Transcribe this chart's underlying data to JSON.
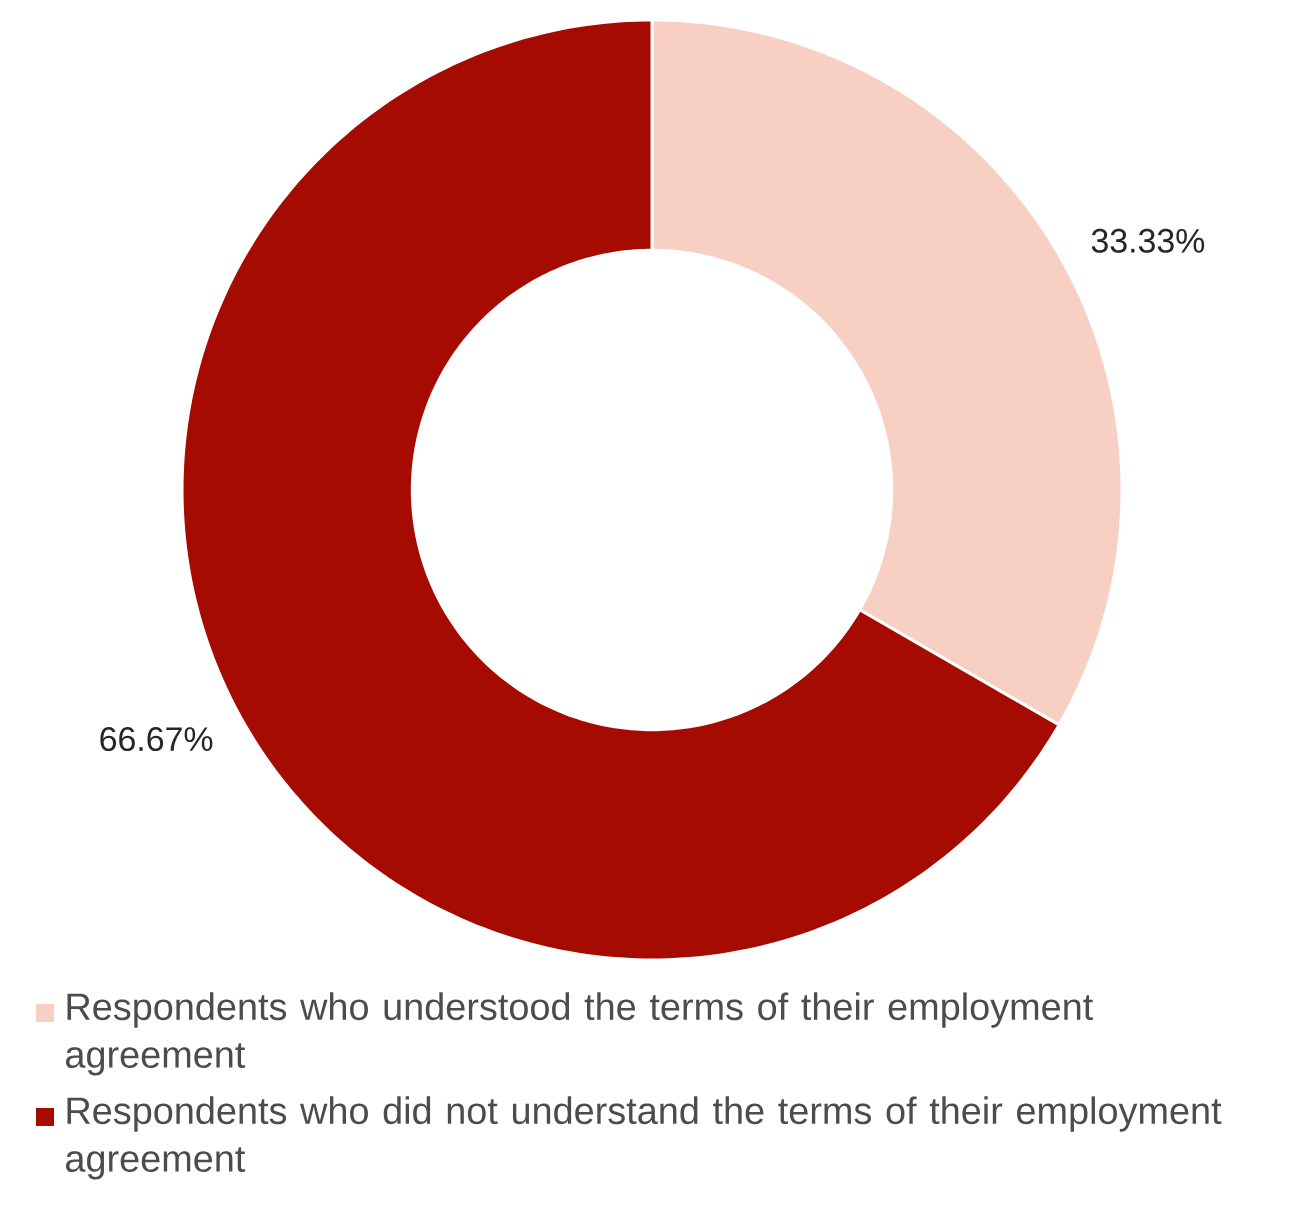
{
  "chart_data": {
    "type": "donut",
    "categories": [
      "Respondents who understood the terms of their employment agreement",
      "Respondents who did not understand the terms of their employment agreement"
    ],
    "values": [
      33.33,
      66.67
    ],
    "colors": [
      "#f7cfc3",
      "#a50b00"
    ],
    "value_labels": [
      "33.33%",
      "66.67%"
    ],
    "legend": "bottom"
  }
}
